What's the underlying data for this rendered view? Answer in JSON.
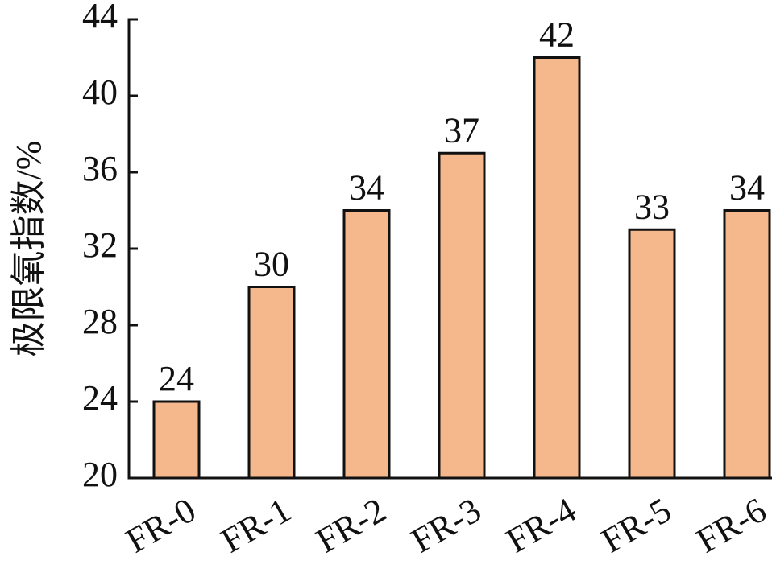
{
  "chart_data": {
    "type": "bar",
    "y_label": "极限氧指数/%",
    "categories": [
      "FR-0",
      "FR-1",
      "FR-2",
      "FR-3",
      "FR-4",
      "FR-5",
      "FR-6"
    ],
    "values": [
      24,
      30,
      34,
      37,
      42,
      33,
      34
    ],
    "color": "#f5b88c",
    "ylim": [
      20,
      44
    ],
    "yticks": [
      20,
      24,
      28,
      32,
      36,
      40,
      44
    ],
    "grid": false
  }
}
